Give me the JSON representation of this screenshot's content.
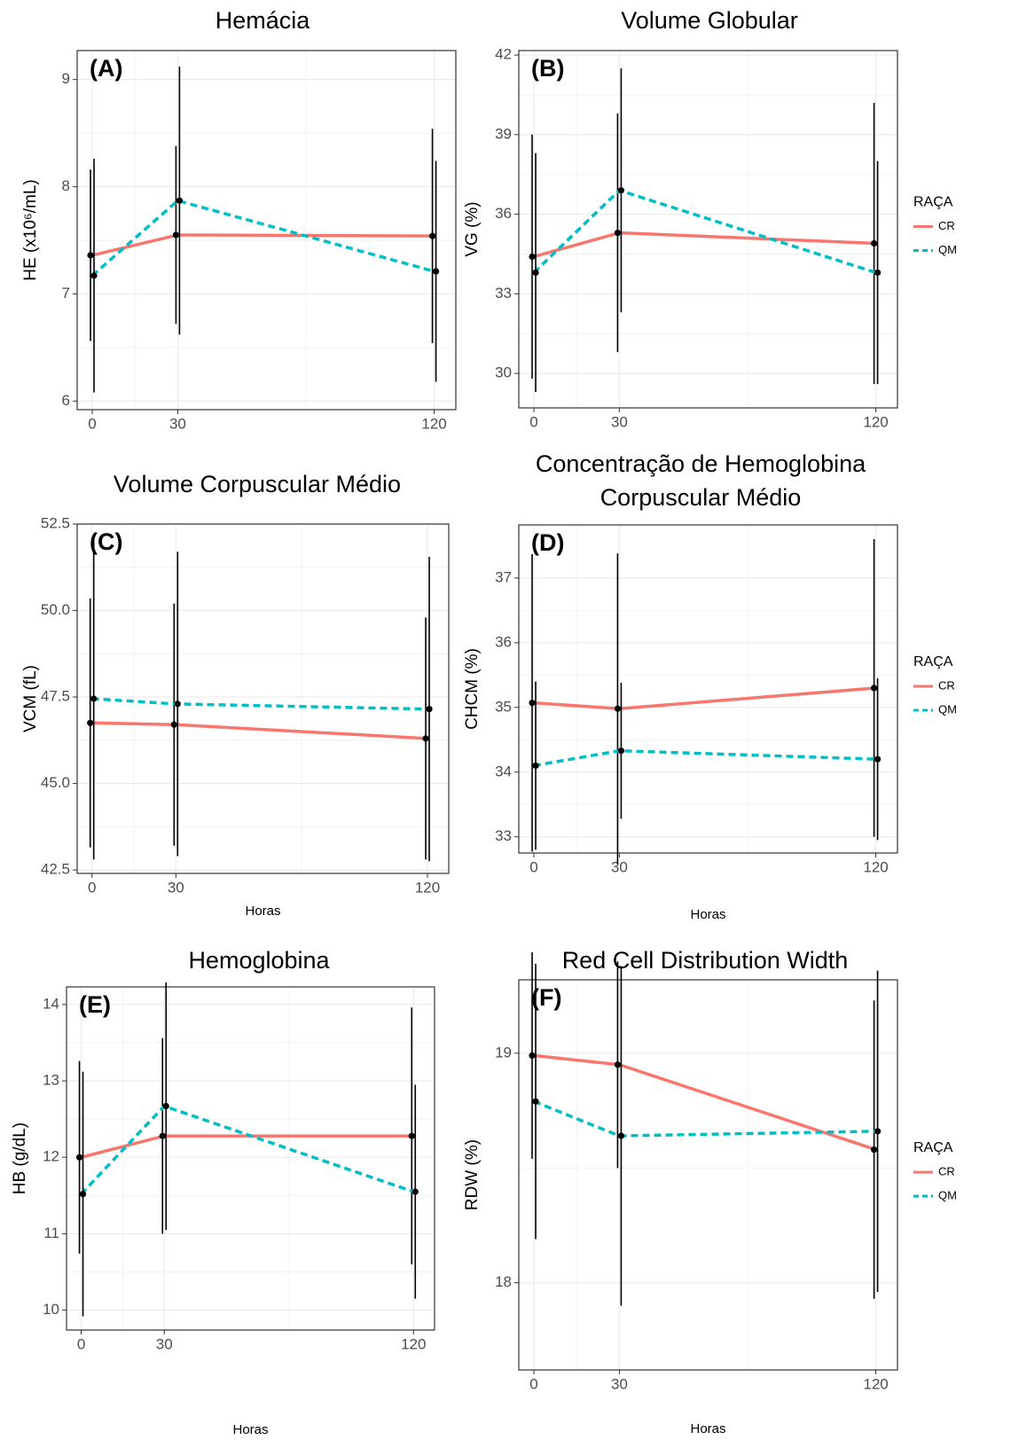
{
  "chart_data": [
    {
      "type": "line",
      "title": "Hemácia",
      "annotation": "(A)",
      "y_label": "HE (x10⁶/mL)",
      "x": [
        0,
        30,
        120
      ],
      "xlim": [
        -5.3,
        127.6
      ],
      "xticks": [
        0,
        30,
        120
      ],
      "ylim": [
        5.92,
        9.27
      ],
      "yticks": [
        6,
        7,
        8,
        9
      ],
      "grid": true,
      "series": [
        {
          "color": "#F8766D",
          "dash": "solid",
          "values": [
            7.36,
            7.55,
            7.54
          ],
          "errors": [
            0.8,
            0.83,
            1.0
          ]
        },
        {
          "color": "#00BFC4",
          "dash": "dashed",
          "values": [
            7.17,
            7.87,
            7.21
          ],
          "errors": [
            1.09,
            1.25,
            1.03
          ]
        }
      ]
    },
    {
      "type": "line",
      "title": "Volume Globular",
      "annotation": "(B)",
      "y_label": "VG (%)",
      "x": [
        0,
        30,
        120
      ],
      "xlim": [
        -5.3,
        127.6
      ],
      "xticks": [
        0,
        30,
        120
      ],
      "ylim": [
        28.7,
        42.17
      ],
      "yticks": [
        30,
        33,
        36,
        39,
        42
      ],
      "grid": true,
      "legend": "right",
      "legend_title": "RAÇA",
      "series": [
        {
          "name": "CR",
          "color": "#F8766D",
          "dash": "solid",
          "values": [
            34.4,
            35.3,
            34.9
          ],
          "errors": [
            4.6,
            4.5,
            5.3
          ]
        },
        {
          "name": "QM",
          "color": "#00BFC4",
          "dash": "dashed",
          "values": [
            33.8,
            36.9,
            33.8
          ],
          "errors": [
            4.5,
            4.6,
            4.2
          ]
        }
      ]
    },
    {
      "type": "line",
      "title": "Volume Corpuscular Médio",
      "annotation": "(C)",
      "y_label": "VCM (fL)",
      "x_label": "Horas",
      "x": [
        0,
        30,
        120
      ],
      "xlim": [
        -5.3,
        127.6
      ],
      "xticks": [
        0,
        30,
        120
      ],
      "ylim": [
        42.4,
        52.5
      ],
      "yticks": [
        42.5,
        {
          "value": 45,
          "label": "45.0"
        },
        47.5,
        {
          "value": 50,
          "label": "50.0"
        },
        52.5
      ],
      "grid": true,
      "series": [
        {
          "color": "#F8766D",
          "dash": "solid",
          "values": [
            46.75,
            46.7,
            46.3
          ],
          "errors": [
            3.6,
            3.5,
            3.5
          ]
        },
        {
          "color": "#00BFC4",
          "dash": "dashed",
          "values": [
            47.45,
            47.3,
            47.15
          ],
          "errors": [
            4.65,
            4.4,
            4.4
          ]
        }
      ]
    },
    {
      "type": "line",
      "title": [
        "Concentração de Hemoglobina",
        "Corpuscular Médio"
      ],
      "annotation": "(D)",
      "y_label": "CHCM (%)",
      "x_label": "Horas",
      "x": [
        0,
        30,
        120
      ],
      "xlim": [
        -5.3,
        127.6
      ],
      "xticks": [
        0,
        30,
        120
      ],
      "ylim": [
        32.75,
        37.82
      ],
      "yticks": [
        33,
        34,
        35,
        36,
        37
      ],
      "grid": true,
      "legend": "right",
      "legend_title": "RAÇA",
      "series": [
        {
          "name": "CR",
          "color": "#F8766D",
          "dash": "solid",
          "values": [
            35.07,
            34.98,
            35.3
          ],
          "errors": [
            2.3,
            2.4,
            2.3
          ]
        },
        {
          "name": "QM",
          "color": "#00BFC4",
          "dash": "dashed",
          "values": [
            34.1,
            34.33,
            34.2
          ],
          "errors": [
            1.3,
            1.05,
            1.25
          ]
        }
      ]
    },
    {
      "type": "line",
      "title": "Hemoglobina",
      "annotation": "(E)",
      "y_label": "HB (g/dL)",
      "x_label": "Horas",
      "x": [
        0,
        30,
        120
      ],
      "xlim": [
        -5.3,
        127.6
      ],
      "xticks": [
        0,
        30,
        120
      ],
      "ylim": [
        9.74,
        14.23
      ],
      "yticks": [
        10,
        11,
        12,
        13,
        14
      ],
      "grid": true,
      "series": [
        {
          "color": "#F8766D",
          "dash": "solid",
          "values": [
            12.0,
            12.28,
            12.28
          ],
          "errors": [
            1.26,
            1.28,
            1.68
          ]
        },
        {
          "color": "#00BFC4",
          "dash": "dashed",
          "values": [
            11.52,
            12.67,
            11.55
          ],
          "errors": [
            1.6,
            1.62,
            1.4
          ]
        }
      ]
    },
    {
      "type": "line",
      "title": "Red Cell Distribution Width",
      "annotation": "(F)",
      "y_label": "RDW (%)",
      "x_label": "Horas",
      "x": [
        0,
        30,
        120
      ],
      "xlim": [
        -5.3,
        127.6
      ],
      "xticks": [
        0,
        30,
        120
      ],
      "ylim": [
        17.62,
        19.32
      ],
      "yticks": [
        18,
        19
      ],
      "grid": true,
      "legend": "right",
      "legend_title": "RAÇA",
      "series": [
        {
          "name": "CR",
          "color": "#F8766D",
          "dash": "solid",
          "values": [
            18.99,
            18.95,
            18.58
          ],
          "errors": [
            0.45,
            0.45,
            0.65
          ]
        },
        {
          "name": "QM",
          "color": "#00BFC4",
          "dash": "dashed",
          "values": [
            18.79,
            18.64,
            18.66
          ],
          "errors": [
            0.6,
            0.74,
            0.7
          ]
        }
      ]
    }
  ]
}
